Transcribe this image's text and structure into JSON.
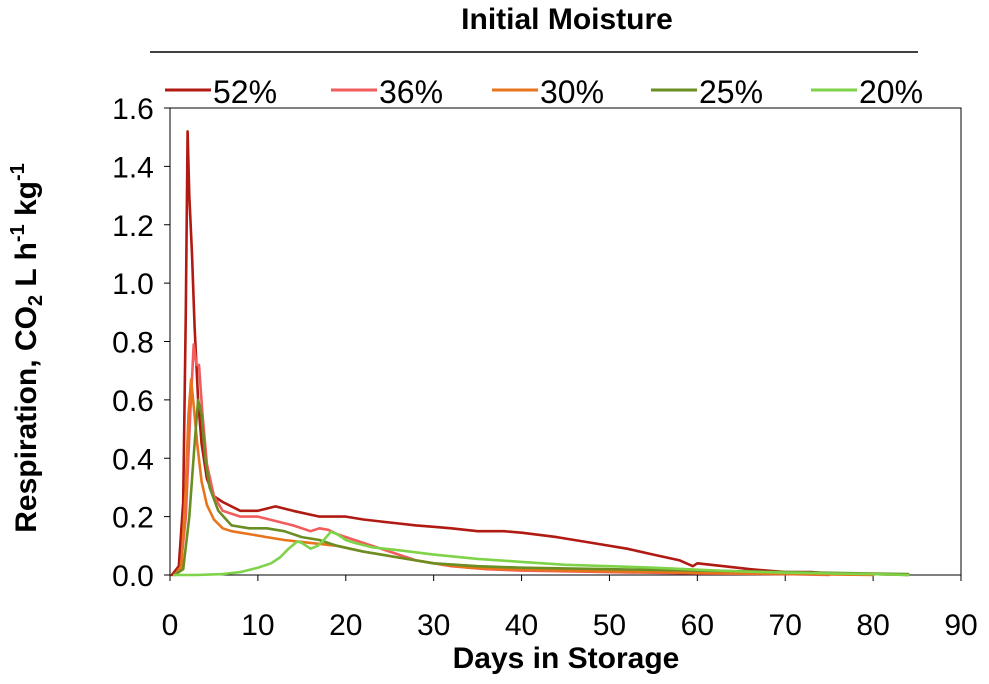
{
  "chart_data": {
    "type": "line",
    "legend_title": "Initial Moisture",
    "legend_position": "top",
    "xlabel": "Days in Storage",
    "ylabel": "Respiration, CO",
    "ylabel_sub": "2",
    "ylabel_rest1": " L h",
    "ylabel_sup1": "-1",
    "ylabel_rest2": " kg",
    "ylabel_sup2": "-1",
    "xlim": [
      0,
      90
    ],
    "ylim": [
      0,
      1.6
    ],
    "xticks": [
      "0",
      "10",
      "20",
      "30",
      "40",
      "50",
      "60",
      "70",
      "80",
      "90"
    ],
    "yticks": [
      "0.0",
      "0.2",
      "0.4",
      "0.6",
      "0.8",
      "1.0",
      "1.2",
      "1.4",
      "1.6"
    ],
    "grid": false,
    "series": [
      {
        "name": "52%",
        "color": "#b01a12",
        "points": [
          [
            0.2,
            0.0
          ],
          [
            1.0,
            0.03
          ],
          [
            1.5,
            0.25
          ],
          [
            1.8,
            0.9
          ],
          [
            2.0,
            1.52
          ],
          [
            2.2,
            1.3
          ],
          [
            2.5,
            1.1
          ],
          [
            2.8,
            0.85
          ],
          [
            3.2,
            0.6
          ],
          [
            3.6,
            0.45
          ],
          [
            4.2,
            0.33
          ],
          [
            5.0,
            0.27
          ],
          [
            6.0,
            0.25
          ],
          [
            8.0,
            0.22
          ],
          [
            10.0,
            0.22
          ],
          [
            12.0,
            0.235
          ],
          [
            14.0,
            0.22
          ],
          [
            17.0,
            0.2
          ],
          [
            20.0,
            0.2
          ],
          [
            22.0,
            0.19
          ],
          [
            25.0,
            0.18
          ],
          [
            28.0,
            0.17
          ],
          [
            30.0,
            0.165
          ],
          [
            32.0,
            0.16
          ],
          [
            35.0,
            0.15
          ],
          [
            38.0,
            0.15
          ],
          [
            40.0,
            0.145
          ],
          [
            44.0,
            0.13
          ],
          [
            48.0,
            0.11
          ],
          [
            52.0,
            0.09
          ],
          [
            55.0,
            0.07
          ],
          [
            58.0,
            0.05
          ],
          [
            59.5,
            0.03
          ],
          [
            60.0,
            0.04
          ],
          [
            63.0,
            0.03
          ],
          [
            66.0,
            0.02
          ],
          [
            70.0,
            0.01
          ],
          [
            73.0,
            0.01
          ],
          [
            75.0,
            0.005
          ],
          [
            80.0,
            0.003
          ],
          [
            84.0,
            0.0
          ]
        ]
      },
      {
        "name": "36%",
        "color": "#f25c5c",
        "points": [
          [
            0.5,
            0.0
          ],
          [
            1.2,
            0.02
          ],
          [
            1.8,
            0.2
          ],
          [
            2.3,
            0.55
          ],
          [
            2.7,
            0.79
          ],
          [
            3.0,
            0.72
          ],
          [
            3.3,
            0.72
          ],
          [
            3.7,
            0.55
          ],
          [
            4.2,
            0.38
          ],
          [
            5.0,
            0.27
          ],
          [
            6.0,
            0.22
          ],
          [
            8.0,
            0.2
          ],
          [
            10.0,
            0.2
          ],
          [
            12.0,
            0.185
          ],
          [
            14.0,
            0.17
          ],
          [
            16.0,
            0.15
          ],
          [
            17.0,
            0.16
          ],
          [
            18.0,
            0.155
          ],
          [
            19.0,
            0.14
          ],
          [
            21.0,
            0.12
          ],
          [
            24.0,
            0.09
          ],
          [
            28.0,
            0.05
          ],
          [
            32.0,
            0.03
          ],
          [
            36.0,
            0.02
          ],
          [
            40.0,
            0.015
          ],
          [
            50.0,
            0.01
          ],
          [
            60.0,
            0.005
          ],
          [
            70.0,
            0.003
          ],
          [
            75.0,
            0.0
          ]
        ]
      },
      {
        "name": "30%",
        "color": "#e8741c",
        "points": [
          [
            0.5,
            0.0
          ],
          [
            1.3,
            0.03
          ],
          [
            1.8,
            0.3
          ],
          [
            2.1,
            0.55
          ],
          [
            2.4,
            0.67
          ],
          [
            2.7,
            0.58
          ],
          [
            3.1,
            0.45
          ],
          [
            3.6,
            0.32
          ],
          [
            4.2,
            0.24
          ],
          [
            5.0,
            0.19
          ],
          [
            6.0,
            0.16
          ],
          [
            7.0,
            0.15
          ],
          [
            9.0,
            0.14
          ],
          [
            11.0,
            0.13
          ],
          [
            13.0,
            0.12
          ],
          [
            16.0,
            0.11
          ],
          [
            19.0,
            0.1
          ],
          [
            22.0,
            0.08
          ],
          [
            26.0,
            0.06
          ],
          [
            30.0,
            0.04
          ],
          [
            34.0,
            0.025
          ],
          [
            38.0,
            0.02
          ],
          [
            45.0,
            0.015
          ],
          [
            55.0,
            0.01
          ],
          [
            65.0,
            0.005
          ],
          [
            75.0,
            0.002
          ],
          [
            80.0,
            0.0
          ]
        ]
      },
      {
        "name": "25%",
        "color": "#6b8e23",
        "points": [
          [
            0.5,
            0.0
          ],
          [
            1.5,
            0.02
          ],
          [
            2.2,
            0.2
          ],
          [
            2.8,
            0.45
          ],
          [
            3.2,
            0.6
          ],
          [
            3.6,
            0.55
          ],
          [
            4.0,
            0.4
          ],
          [
            4.5,
            0.3
          ],
          [
            5.5,
            0.22
          ],
          [
            7.0,
            0.17
          ],
          [
            9.0,
            0.16
          ],
          [
            11.0,
            0.16
          ],
          [
            13.0,
            0.15
          ],
          [
            15.0,
            0.13
          ],
          [
            17.0,
            0.12
          ],
          [
            19.0,
            0.1
          ],
          [
            22.0,
            0.08
          ],
          [
            26.0,
            0.06
          ],
          [
            30.0,
            0.04
          ],
          [
            35.0,
            0.03
          ],
          [
            40.0,
            0.025
          ],
          [
            50.0,
            0.02
          ],
          [
            60.0,
            0.015
          ],
          [
            70.0,
            0.01
          ],
          [
            80.0,
            0.005
          ],
          [
            84.0,
            0.003
          ]
        ]
      },
      {
        "name": "20%",
        "color": "#7ed348",
        "points": [
          [
            0.5,
            0.0
          ],
          [
            3.0,
            0.0
          ],
          [
            6.0,
            0.003
          ],
          [
            8.0,
            0.01
          ],
          [
            10.0,
            0.025
          ],
          [
            11.5,
            0.04
          ],
          [
            12.5,
            0.06
          ],
          [
            13.5,
            0.09
          ],
          [
            14.5,
            0.115
          ],
          [
            15.0,
            0.11
          ],
          [
            15.5,
            0.1
          ],
          [
            16.0,
            0.09
          ],
          [
            16.8,
            0.1
          ],
          [
            17.5,
            0.12
          ],
          [
            18.3,
            0.148
          ],
          [
            19.0,
            0.14
          ],
          [
            20.0,
            0.12
          ],
          [
            21.0,
            0.11
          ],
          [
            23.0,
            0.095
          ],
          [
            26.0,
            0.085
          ],
          [
            30.0,
            0.07
          ],
          [
            35.0,
            0.055
          ],
          [
            40.0,
            0.045
          ],
          [
            45.0,
            0.035
          ],
          [
            50.0,
            0.03
          ],
          [
            55.0,
            0.025
          ],
          [
            60.0,
            0.018
          ],
          [
            65.0,
            0.012
          ],
          [
            70.0,
            0.008
          ],
          [
            75.0,
            0.005
          ],
          [
            80.0,
            0.003
          ],
          [
            84.0,
            0.0
          ]
        ]
      }
    ]
  }
}
